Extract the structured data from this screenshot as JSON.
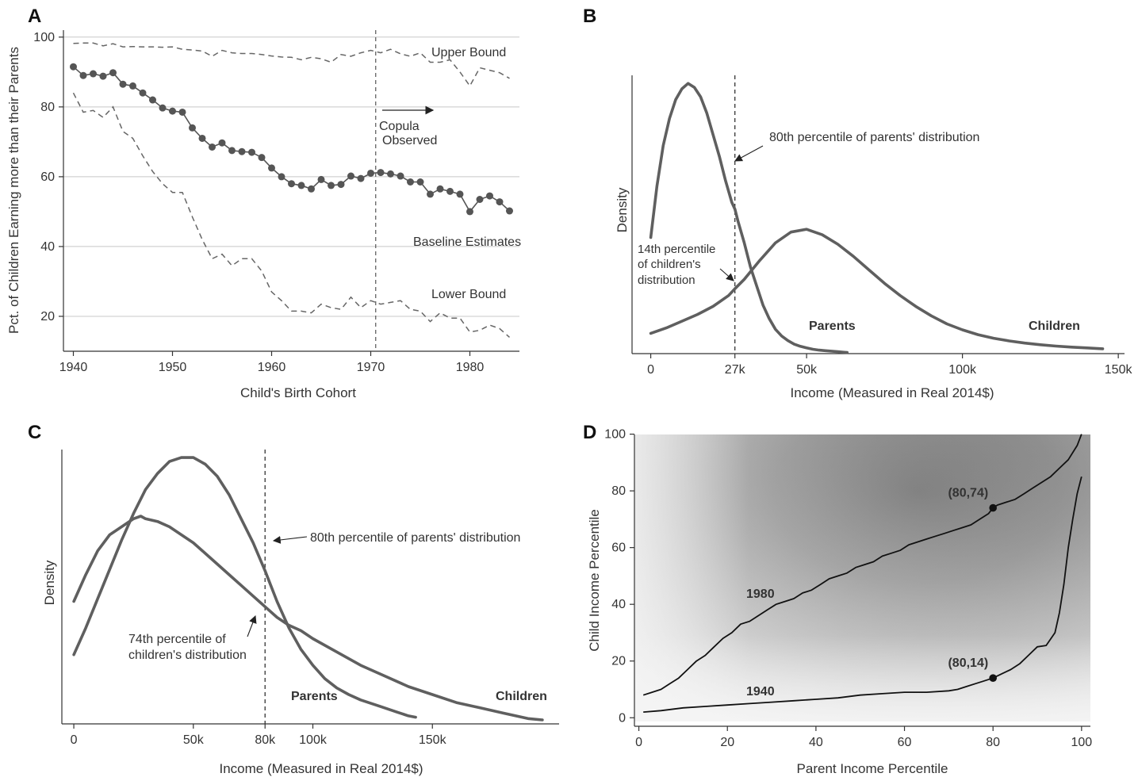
{
  "chart_data": [
    {
      "panel": "A",
      "type": "line",
      "xlabel": "Child's Birth Cohort",
      "ylabel": "Pct. of Children Earning more than their Parents",
      "xlim": [
        1939,
        1985
      ],
      "ylim": [
        10,
        102
      ],
      "xticks": [
        1940,
        1950,
        1960,
        1970,
        1980
      ],
      "yticks": [
        20,
        40,
        60,
        80,
        100
      ],
      "grid": "horizontal",
      "vline": 1970.5,
      "series": [
        {
          "name": "Baseline Estimates",
          "style": "line-markers",
          "x": [
            1940,
            1941,
            1942,
            1943,
            1944,
            1945,
            1946,
            1947,
            1948,
            1949,
            1950,
            1951,
            1952,
            1953,
            1954,
            1955,
            1956,
            1957,
            1958,
            1959,
            1960,
            1961,
            1962,
            1963,
            1964,
            1965,
            1966,
            1967,
            1968,
            1969,
            1970,
            1971,
            1972,
            1973,
            1974,
            1975,
            1976,
            1977,
            1978,
            1979,
            1980,
            1981,
            1982,
            1983,
            1984
          ],
          "y": [
            91.5,
            89.0,
            89.5,
            88.8,
            89.8,
            86.5,
            86.0,
            84.0,
            82.0,
            79.7,
            78.8,
            78.5,
            74.0,
            71.0,
            68.5,
            69.7,
            67.5,
            67.2,
            67.0,
            65.5,
            62.5,
            60.0,
            58.0,
            57.5,
            56.5,
            59.2,
            57.5,
            57.8,
            60.2,
            59.5,
            61.0,
            61.2,
            60.8,
            60.2,
            58.5,
            58.5,
            55.0,
            56.5,
            55.8,
            55.0,
            50.0,
            53.5,
            54.5,
            52.8,
            50.2
          ]
        },
        {
          "name": "Upper Bound",
          "style": "dashed",
          "x": [
            1940,
            1941,
            1942,
            1943,
            1944,
            1945,
            1946,
            1947,
            1948,
            1949,
            1950,
            1951,
            1952,
            1953,
            1954,
            1955,
            1956,
            1957,
            1958,
            1959,
            1960,
            1961,
            1962,
            1963,
            1964,
            1965,
            1966,
            1967,
            1968,
            1969,
            1970,
            1971,
            1972,
            1973,
            1974,
            1975,
            1976,
            1977,
            1978,
            1979,
            1980,
            1981,
            1982,
            1983,
            1984
          ],
          "y": [
            98.2,
            98.3,
            98.3,
            97.5,
            98.1,
            97.2,
            97.3,
            97.2,
            97.2,
            97.1,
            97.2,
            96.5,
            96.3,
            96.0,
            94.5,
            96.2,
            95.5,
            95.3,
            95.3,
            95.0,
            94.6,
            94.3,
            94.2,
            93.5,
            94.2,
            93.8,
            92.8,
            95.0,
            94.5,
            95.5,
            96.2,
            95.5,
            96.5,
            95.2,
            94.5,
            95.5,
            92.8,
            92.8,
            93.5,
            90.0,
            86.0,
            91.2,
            90.5,
            89.8,
            88.2
          ]
        },
        {
          "name": "Lower Bound",
          "style": "dashed",
          "x": [
            1940,
            1941,
            1942,
            1943,
            1944,
            1945,
            1946,
            1947,
            1948,
            1949,
            1950,
            1951,
            1952,
            1953,
            1954,
            1955,
            1956,
            1957,
            1958,
            1959,
            1960,
            1961,
            1962,
            1963,
            1964,
            1965,
            1966,
            1967,
            1968,
            1969,
            1970,
            1971,
            1972,
            1973,
            1974,
            1975,
            1976,
            1977,
            1978,
            1979,
            1980,
            1981,
            1982,
            1983,
            1984
          ],
          "y": [
            84.0,
            78.5,
            79.0,
            77.0,
            80.0,
            73.0,
            71.0,
            66.0,
            61.5,
            58.0,
            55.5,
            55.5,
            48.5,
            42.0,
            36.5,
            37.8,
            34.5,
            36.5,
            36.5,
            33.0,
            27.0,
            24.5,
            21.5,
            21.5,
            21.0,
            23.5,
            22.5,
            22.0,
            25.5,
            22.5,
            24.5,
            23.5,
            24.0,
            24.5,
            22.0,
            21.5,
            18.5,
            21.0,
            19.5,
            19.5,
            15.5,
            16.0,
            17.5,
            16.5,
            14.0
          ]
        }
      ],
      "annotations": [
        "Copula",
        "Observed"
      ]
    },
    {
      "panel": "B",
      "type": "line",
      "xlabel": "Income (Measured in Real 2014$)",
      "ylabel": "Density",
      "xlim": [
        -6,
        152
      ],
      "ylim": [
        0,
        1.03
      ],
      "xtick_values": [
        0,
        27,
        50,
        100,
        150
      ],
      "xtick_labels": [
        "0",
        "27k",
        "50k",
        "100k",
        "150k"
      ],
      "vline": 27,
      "series": [
        {
          "name": "Parents",
          "x": [
            0,
            2,
            4,
            6,
            8,
            10,
            12,
            14,
            16,
            18,
            20,
            22,
            24,
            26,
            27,
            28,
            30,
            32,
            34,
            36,
            38,
            40,
            42,
            44,
            46,
            48,
            50,
            52,
            54,
            56,
            58,
            60,
            62,
            63
          ],
          "y": [
            0.43,
            0.62,
            0.77,
            0.87,
            0.94,
            0.98,
            1.0,
            0.985,
            0.95,
            0.89,
            0.81,
            0.73,
            0.64,
            0.56,
            0.535,
            0.49,
            0.41,
            0.32,
            0.25,
            0.18,
            0.13,
            0.09,
            0.065,
            0.048,
            0.035,
            0.027,
            0.021,
            0.016,
            0.013,
            0.011,
            0.009,
            0.007,
            0.005,
            0.004
          ]
        },
        {
          "name": "Children",
          "x": [
            0,
            5,
            10,
            15,
            20,
            25,
            27,
            30,
            35,
            40,
            45,
            50,
            55,
            60,
            65,
            70,
            75,
            80,
            85,
            90,
            95,
            100,
            105,
            110,
            115,
            120,
            125,
            130,
            135,
            140,
            145
          ],
          "y": [
            0.075,
            0.095,
            0.12,
            0.145,
            0.175,
            0.215,
            0.24,
            0.275,
            0.345,
            0.41,
            0.45,
            0.46,
            0.44,
            0.405,
            0.36,
            0.31,
            0.26,
            0.215,
            0.175,
            0.14,
            0.11,
            0.088,
            0.07,
            0.057,
            0.047,
            0.039,
            0.033,
            0.028,
            0.024,
            0.021,
            0.018
          ]
        }
      ],
      "annotations": [
        "80th percentile of parents' distribution",
        "14th percentile",
        "of children's",
        "distribution"
      ]
    },
    {
      "panel": "C",
      "type": "line",
      "xlabel": "Income (Measured in Real 2014$)",
      "ylabel": "Density",
      "xlim": [
        -5,
        203
      ],
      "ylim": [
        0,
        1.03
      ],
      "xtick_values": [
        0,
        50,
        80,
        100,
        150
      ],
      "xtick_labels": [
        "0",
        "50k",
        "80k",
        "100k",
        "150k"
      ],
      "vline": 80,
      "series": [
        {
          "name": "Parents",
          "x": [
            0,
            5,
            10,
            15,
            20,
            25,
            30,
            35,
            40,
            45,
            50,
            55,
            60,
            65,
            70,
            75,
            80,
            85,
            90,
            95,
            100,
            105,
            110,
            115,
            120,
            125,
            130,
            135,
            140,
            143
          ],
          "y": [
            0.26,
            0.36,
            0.47,
            0.58,
            0.69,
            0.79,
            0.88,
            0.94,
            0.985,
            1.0,
            1.0,
            0.975,
            0.93,
            0.86,
            0.77,
            0.68,
            0.575,
            0.46,
            0.36,
            0.28,
            0.22,
            0.17,
            0.135,
            0.11,
            0.09,
            0.075,
            0.06,
            0.045,
            0.03,
            0.025
          ]
        },
        {
          "name": "Children",
          "x": [
            0,
            5,
            10,
            15,
            20,
            25,
            28,
            30,
            35,
            40,
            45,
            50,
            55,
            60,
            65,
            70,
            75,
            80,
            85,
            90,
            95,
            100,
            110,
            120,
            130,
            140,
            150,
            160,
            170,
            180,
            190,
            196
          ],
          "y": [
            0.46,
            0.56,
            0.65,
            0.71,
            0.74,
            0.77,
            0.78,
            0.77,
            0.76,
            0.74,
            0.71,
            0.68,
            0.64,
            0.6,
            0.56,
            0.52,
            0.48,
            0.44,
            0.4,
            0.37,
            0.35,
            0.32,
            0.27,
            0.22,
            0.18,
            0.14,
            0.11,
            0.08,
            0.06,
            0.04,
            0.02,
            0.015
          ]
        }
      ],
      "annotations": [
        "80th percentile of parents' distribution",
        "74th percentile of",
        "children's distribution"
      ]
    },
    {
      "panel": "D",
      "type": "line",
      "xlabel": "Parent Income Percentile",
      "ylabel": "Child Income Percentile",
      "xlim": [
        -1,
        102
      ],
      "ylim": [
        -3,
        101
      ],
      "xticks": [
        0,
        20,
        40,
        60,
        80,
        100
      ],
      "yticks": [
        0,
        20,
        40,
        60,
        80,
        100
      ],
      "series": [
        {
          "name": "1980",
          "x": [
            1,
            3,
            5,
            7,
            9,
            11,
            13,
            15,
            17,
            19,
            21,
            23,
            25,
            27,
            29,
            31,
            33,
            35,
            37,
            39,
            41,
            43,
            45,
            47,
            49,
            51,
            53,
            55,
            57,
            59,
            61,
            63,
            65,
            67,
            69,
            71,
            73,
            75,
            77,
            79,
            80,
            81,
            83,
            85,
            87,
            89,
            91,
            93,
            95,
            97,
            99,
            100
          ],
          "y": [
            8,
            9,
            10,
            12,
            14,
            17,
            20,
            22,
            25,
            28,
            30,
            33,
            34,
            36,
            38,
            40,
            41,
            42,
            44,
            45,
            47,
            49,
            50,
            51,
            53,
            54,
            55,
            57,
            58,
            59,
            61,
            62,
            63,
            64,
            65,
            66,
            67,
            68,
            70,
            72,
            74,
            75,
            76,
            77,
            79,
            81,
            83,
            85,
            88,
            91,
            96,
            100
          ]
        },
        {
          "name": "1940",
          "x": [
            1,
            5,
            10,
            15,
            20,
            25,
            30,
            35,
            40,
            45,
            50,
            55,
            60,
            65,
            70,
            72,
            74,
            76,
            78,
            80,
            82,
            84,
            86,
            88,
            90,
            92,
            94,
            95,
            96,
            97,
            98,
            99,
            100
          ],
          "y": [
            2,
            2.5,
            3.5,
            4,
            4.5,
            5,
            5.5,
            6,
            6.5,
            7,
            8,
            8.5,
            9,
            9,
            9.5,
            10,
            11,
            12,
            13,
            14,
            15.5,
            17,
            19,
            22,
            25,
            25.5,
            30,
            37,
            47,
            60,
            70,
            79,
            85
          ]
        }
      ],
      "points": [
        {
          "label": "(80,74)",
          "x": 80,
          "y": 74
        },
        {
          "label": "(80,14)",
          "x": 80,
          "y": 14
        }
      ]
    }
  ]
}
